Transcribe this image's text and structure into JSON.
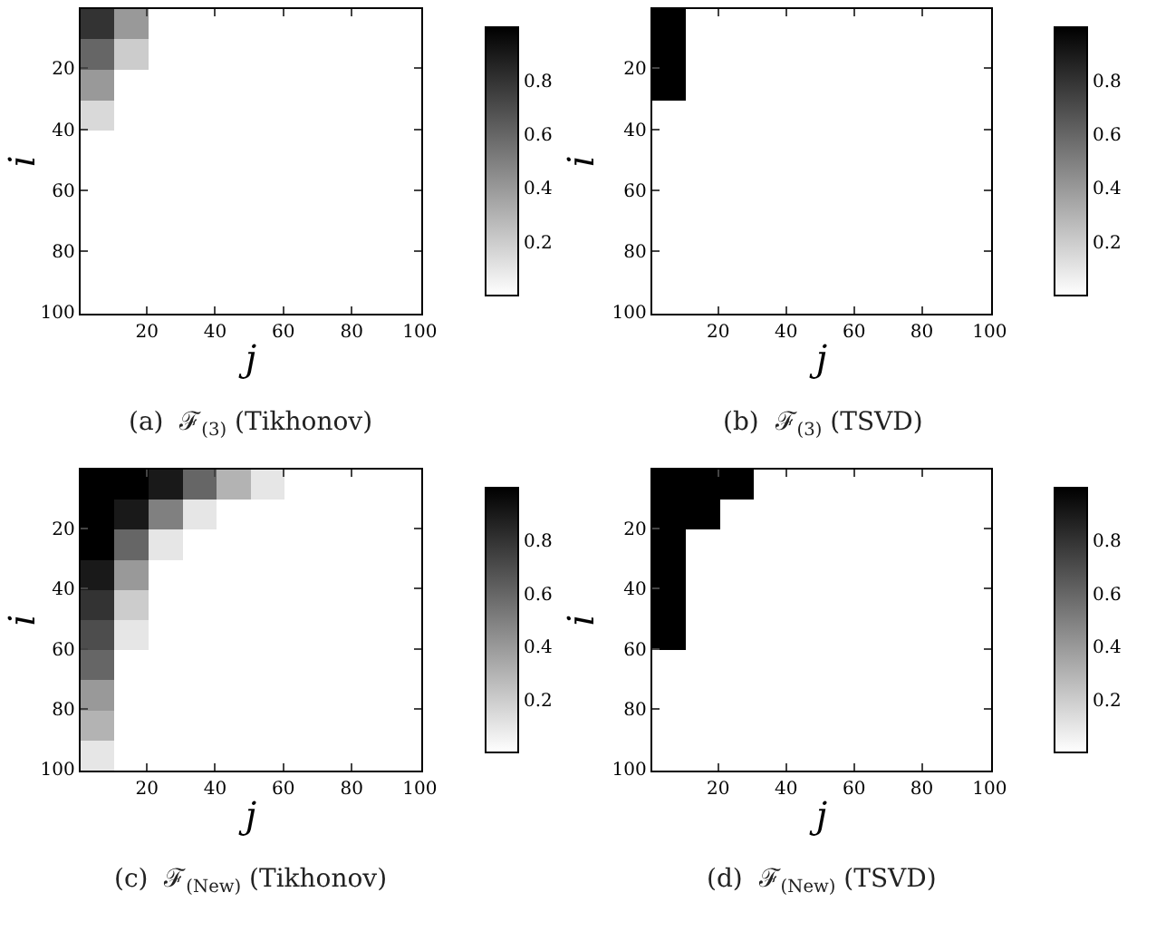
{
  "chart_data": [
    {
      "type": "heatmap",
      "xlabel": "j",
      "ylabel": "i",
      "annotations": [
        "(a)  ℱ$_{(3)}$ (Tikhonov)"
      ],
      "xlim": [
        0.5,
        100.5
      ],
      "ylim": [
        100.5,
        0.5
      ],
      "xticks": [
        20,
        40,
        60,
        80,
        100
      ],
      "yticks": [
        20,
        40,
        60,
        80,
        100
      ],
      "clim": [
        0,
        1
      ],
      "cticks": [
        0.2,
        0.4,
        0.6,
        0.8
      ],
      "cells": [
        [
          0.8,
          0.4,
          0,
          0,
          0,
          0,
          0,
          0,
          0,
          0
        ],
        [
          0.6,
          0.2,
          0,
          0,
          0,
          0,
          0,
          0,
          0,
          0
        ],
        [
          0.4,
          0,
          0,
          0,
          0,
          0,
          0,
          0,
          0,
          0
        ],
        [
          0.15,
          0,
          0,
          0,
          0,
          0,
          0,
          0,
          0,
          0
        ],
        [
          0,
          0,
          0,
          0,
          0,
          0,
          0,
          0,
          0,
          0
        ],
        [
          0,
          0,
          0,
          0,
          0,
          0,
          0,
          0,
          0,
          0
        ],
        [
          0,
          0,
          0,
          0,
          0,
          0,
          0,
          0,
          0,
          0
        ],
        [
          0,
          0,
          0,
          0,
          0,
          0,
          0,
          0,
          0,
          0
        ],
        [
          0,
          0,
          0,
          0,
          0,
          0,
          0,
          0,
          0,
          0
        ],
        [
          0,
          0,
          0,
          0,
          0,
          0,
          0,
          0,
          0,
          0
        ]
      ]
    },
    {
      "type": "heatmap",
      "xlabel": "j",
      "ylabel": "i",
      "annotations": [
        "(b)  ℱ$_{(3)}$ (TSVD)"
      ],
      "xlim": [
        0.5,
        100.5
      ],
      "ylim": [
        100.5,
        0.5
      ],
      "xticks": [
        20,
        40,
        60,
        80,
        100
      ],
      "yticks": [
        20,
        40,
        60,
        80,
        100
      ],
      "clim": [
        0,
        1
      ],
      "cticks": [
        0.2,
        0.4,
        0.6,
        0.8
      ],
      "cells": [
        [
          1,
          0,
          0,
          0,
          0,
          0,
          0,
          0,
          0,
          0
        ],
        [
          1,
          0,
          0,
          0,
          0,
          0,
          0,
          0,
          0,
          0
        ],
        [
          1,
          0,
          0,
          0,
          0,
          0,
          0,
          0,
          0,
          0
        ],
        [
          0,
          0,
          0,
          0,
          0,
          0,
          0,
          0,
          0,
          0
        ],
        [
          0,
          0,
          0,
          0,
          0,
          0,
          0,
          0,
          0,
          0
        ],
        [
          0,
          0,
          0,
          0,
          0,
          0,
          0,
          0,
          0,
          0
        ],
        [
          0,
          0,
          0,
          0,
          0,
          0,
          0,
          0,
          0,
          0
        ],
        [
          0,
          0,
          0,
          0,
          0,
          0,
          0,
          0,
          0,
          0
        ],
        [
          0,
          0,
          0,
          0,
          0,
          0,
          0,
          0,
          0,
          0
        ],
        [
          0,
          0,
          0,
          0,
          0,
          0,
          0,
          0,
          0,
          0
        ]
      ]
    },
    {
      "type": "heatmap",
      "xlabel": "j",
      "ylabel": "i",
      "annotations": [
        "(c)  ℱ$_{(New)}$ (Tikhonov)"
      ],
      "xlim": [
        0.5,
        100.5
      ],
      "ylim": [
        100.5,
        0.5
      ],
      "xticks": [
        20,
        40,
        60,
        80,
        100
      ],
      "yticks": [
        20,
        40,
        60,
        80,
        100
      ],
      "clim": [
        0,
        1
      ],
      "cticks": [
        0.2,
        0.4,
        0.6,
        0.8
      ],
      "cells": [
        [
          1,
          1,
          0.9,
          0.6,
          0.3,
          0.1,
          0,
          0,
          0,
          0
        ],
        [
          1,
          0.9,
          0.5,
          0.1,
          0,
          0,
          0,
          0,
          0,
          0
        ],
        [
          1,
          0.6,
          0.1,
          0,
          0,
          0,
          0,
          0,
          0,
          0
        ],
        [
          0.9,
          0.4,
          0,
          0,
          0,
          0,
          0,
          0,
          0,
          0
        ],
        [
          0.8,
          0.2,
          0,
          0,
          0,
          0,
          0,
          0,
          0,
          0
        ],
        [
          0.7,
          0.1,
          0,
          0,
          0,
          0,
          0,
          0,
          0,
          0
        ],
        [
          0.6,
          0,
          0,
          0,
          0,
          0,
          0,
          0,
          0,
          0
        ],
        [
          0.4,
          0,
          0,
          0,
          0,
          0,
          0,
          0,
          0,
          0
        ],
        [
          0.3,
          0,
          0,
          0,
          0,
          0,
          0,
          0,
          0,
          0
        ],
        [
          0.1,
          0,
          0,
          0,
          0,
          0,
          0,
          0,
          0,
          0
        ]
      ]
    },
    {
      "type": "heatmap",
      "xlabel": "j",
      "ylabel": "i",
      "annotations": [
        "(d)  ℱ$_{(New)}$ (TSVD)"
      ],
      "xlim": [
        0.5,
        100.5
      ],
      "ylim": [
        100.5,
        0.5
      ],
      "xticks": [
        20,
        40,
        60,
        80,
        100
      ],
      "yticks": [
        20,
        40,
        60,
        80,
        100
      ],
      "clim": [
        0,
        1
      ],
      "cticks": [
        0.2,
        0.4,
        0.6,
        0.8
      ],
      "cells": [
        [
          1,
          1,
          1,
          0,
          0,
          0,
          0,
          0,
          0,
          0
        ],
        [
          1,
          1,
          0,
          0,
          0,
          0,
          0,
          0,
          0,
          0
        ],
        [
          1,
          0,
          0,
          0,
          0,
          0,
          0,
          0,
          0,
          0
        ],
        [
          1,
          0,
          0,
          0,
          0,
          0,
          0,
          0,
          0,
          0
        ],
        [
          1,
          0,
          0,
          0,
          0,
          0,
          0,
          0,
          0,
          0
        ],
        [
          1,
          0,
          0,
          0,
          0,
          0,
          0,
          0,
          0,
          0
        ],
        [
          0,
          0,
          0,
          0,
          0,
          0,
          0,
          0,
          0,
          0
        ],
        [
          0,
          0,
          0,
          0,
          0,
          0,
          0,
          0,
          0,
          0
        ],
        [
          0,
          0,
          0,
          0,
          0,
          0,
          0,
          0,
          0,
          0
        ],
        [
          0,
          0,
          0,
          0,
          0,
          0,
          0,
          0,
          0,
          0
        ]
      ]
    }
  ]
}
